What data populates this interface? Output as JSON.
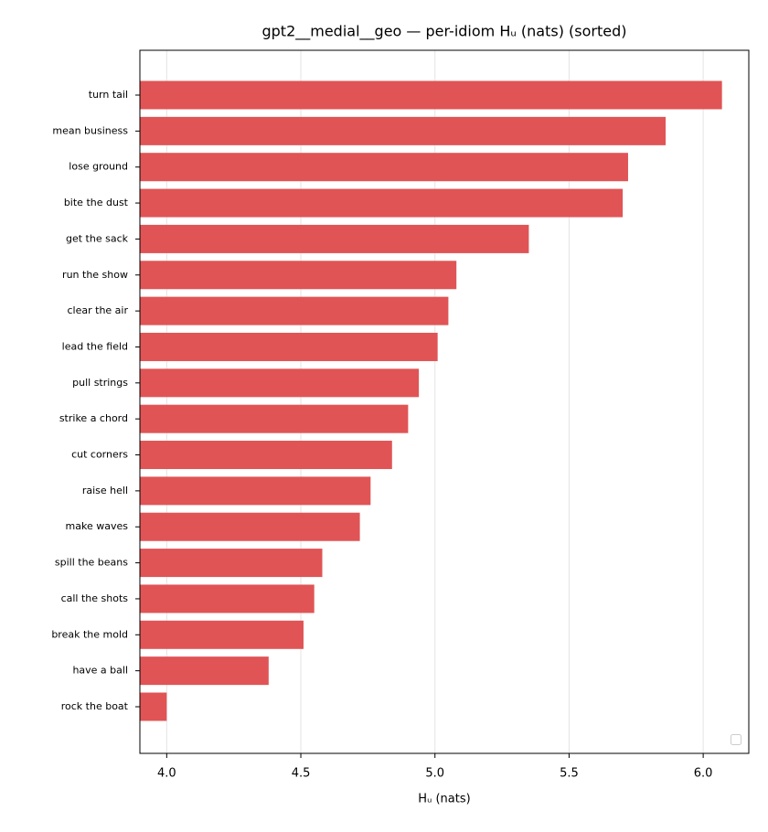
{
  "chart_data": {
    "type": "barh",
    "title": "gpt2__medial__geo — per-idiom Hᵤ (nats) (sorted)",
    "x_label": "Hᵤ (nats)",
    "categories": [
      "turn tail",
      "mean business",
      "lose ground",
      "bite the dust",
      "get the sack",
      "run the show",
      "clear the air",
      "lead the field",
      "pull strings",
      "strike a chord",
      "cut corners",
      "raise hell",
      "make waves",
      "spill the beans",
      "call the shots",
      "break the mold",
      "have a ball",
      "rock the boat"
    ],
    "values": [
      6.07,
      5.86,
      5.72,
      5.7,
      5.35,
      5.08,
      5.05,
      5.01,
      4.94,
      4.9,
      4.84,
      4.76,
      4.72,
      4.58,
      4.55,
      4.51,
      4.38,
      4.0
    ],
    "color": "#e05455",
    "xlim": [
      3.9,
      6.17
    ],
    "xticks": [
      {
        "value": 4,
        "label": "4.0"
      },
      4.5,
      {
        "value": 5,
        "label": "5.0"
      },
      5.5,
      {
        "value": 6,
        "label": "6.0"
      }
    ],
    "grid": true
  }
}
